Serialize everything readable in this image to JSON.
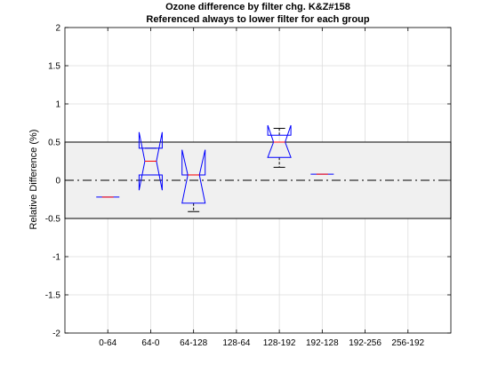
{
  "chart_data": {
    "type": "box",
    "title": "Ozone difference by filter chg. K&Z#158",
    "subtitle": "Referenced always to lower filter for each group",
    "xlabel": "",
    "ylabel": "Relative Difference (%)",
    "ylim": [
      -2,
      2
    ],
    "yticks": [
      -2,
      -1.5,
      -1,
      -0.5,
      0,
      0.5,
      1,
      1.5,
      2
    ],
    "ytick_labels": [
      "-2",
      "-1.5",
      "-1",
      "-0.5",
      "0",
      "0.5",
      "1",
      "1.5",
      "2"
    ],
    "categories": [
      "0-64",
      "64-0",
      "64-128",
      "128-64",
      "128-192",
      "192-128",
      "192-256",
      "256-192"
    ],
    "grid": true,
    "reference_band": {
      "lower": -0.5,
      "upper": 0.5,
      "fill": "#f0f0f0",
      "edge": "#000000"
    },
    "zero_line": {
      "y": 0,
      "style": "dash-dot"
    },
    "boxes": [
      {
        "category": "0-64",
        "type": "line",
        "median": -0.22,
        "color": "#0000ff",
        "median_color": "#ff0000"
      },
      {
        "category": "64-0",
        "type": "notched",
        "q1": 0.07,
        "median": 0.25,
        "q3": 0.42,
        "notch_low": -0.13,
        "notch_high": 0.63,
        "whisker_low": 0.07,
        "whisker_high": 0.42
      },
      {
        "category": "64-128",
        "type": "notched",
        "q1": -0.3,
        "median": 0.07,
        "q3": 0.07,
        "notch_low": -0.3,
        "notch_high": 0.4,
        "whisker_low": -0.41,
        "whisker_high": 0.07
      },
      {
        "category": "128-192",
        "type": "notched",
        "q1": 0.3,
        "median": 0.5,
        "q3": 0.59,
        "notch_low": 0.3,
        "notch_high": 0.72,
        "whisker_low": 0.17,
        "whisker_high": 0.68
      },
      {
        "category": "192-128",
        "type": "line",
        "median": 0.08,
        "color": "#0000ff",
        "median_color": "#ff0000"
      }
    ],
    "colors": {
      "box": "#0000ff",
      "median": "#ff0000",
      "whisker": "#000000",
      "grid": "#dcdcdc"
    }
  }
}
